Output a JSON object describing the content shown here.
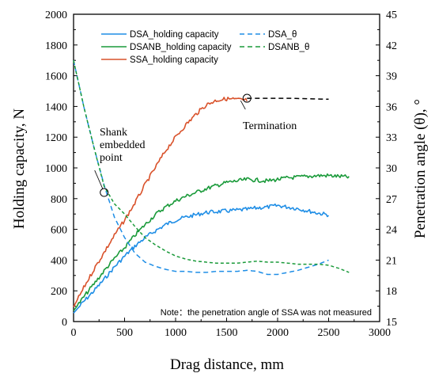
{
  "chart_data": {
    "type": "line",
    "xlabel": "Drag distance, mm",
    "ylabel_left": "Holding capacity, N",
    "ylabel_right": "Penetration angle (θ), °",
    "xlim": [
      0,
      3000
    ],
    "ylim_left": [
      0,
      2000
    ],
    "ylim_right": [
      15,
      45
    ],
    "x_ticks": [
      "0",
      "500",
      "1000",
      "1500",
      "2000",
      "2500",
      "3000"
    ],
    "y_left_ticks": [
      "0",
      "200",
      "400",
      "600",
      "800",
      "1000",
      "1200",
      "1400",
      "1600",
      "1800",
      "2000"
    ],
    "y_right_ticks": [
      "15",
      "18",
      "21",
      "24",
      "27",
      "30",
      "33",
      "36",
      "39",
      "42",
      "45"
    ],
    "grid": false,
    "legend_position": "top",
    "series": [
      {
        "name": "DSA_holding capacity",
        "axis": "left",
        "style": "solid",
        "color": "#1f8ee6",
        "x": [
          0,
          100,
          200,
          300,
          400,
          500,
          600,
          700,
          800,
          900,
          1000,
          1100,
          1200,
          1300,
          1400,
          1500,
          1600,
          1700,
          1800,
          1900,
          2000,
          2100,
          2200,
          2300,
          2400,
          2500
        ],
        "y": [
          55,
          130,
          200,
          275,
          355,
          425,
          490,
          545,
          590,
          630,
          660,
          680,
          695,
          710,
          715,
          720,
          725,
          730,
          740,
          745,
          755,
          745,
          735,
          720,
          705,
          695
        ]
      },
      {
        "name": "DSANB_holding capacity",
        "axis": "left",
        "style": "solid",
        "color": "#1a9a3a",
        "x": [
          0,
          100,
          200,
          300,
          400,
          500,
          600,
          700,
          800,
          900,
          1000,
          1100,
          1200,
          1300,
          1400,
          1500,
          1600,
          1700,
          1800,
          1900,
          2000,
          2100,
          2200,
          2300,
          2400,
          2500,
          2600,
          2700
        ],
        "y": [
          70,
          160,
          245,
          330,
          410,
          480,
          560,
          630,
          695,
          745,
          785,
          815,
          840,
          865,
          885,
          905,
          915,
          925,
          920,
          915,
          925,
          935,
          940,
          945,
          950,
          950,
          945,
          940
        ]
      },
      {
        "name": "SSA_holding capacity",
        "axis": "left",
        "style": "solid",
        "color": "#d9522b",
        "x": [
          0,
          100,
          200,
          300,
          400,
          500,
          600,
          700,
          800,
          900,
          1000,
          1100,
          1200,
          1300,
          1400,
          1500,
          1600,
          1700
        ],
        "y": [
          95,
          220,
          340,
          450,
          560,
          660,
          770,
          890,
          1000,
          1110,
          1200,
          1280,
          1350,
          1410,
          1440,
          1450,
          1445,
          1440
        ]
      },
      {
        "name": "DSA_θ",
        "axis": "right",
        "style": "dashed",
        "color": "#1f8ee6",
        "x": [
          0,
          100,
          200,
          300,
          400,
          500,
          600,
          700,
          800,
          900,
          1000,
          1100,
          1200,
          1300,
          1400,
          1500,
          1600,
          1700,
          1800,
          1900,
          2000,
          2100,
          2200,
          2300,
          2400,
          2500
        ],
        "y": [
          40.5,
          36,
          32,
          28.3,
          25.2,
          23.2,
          21.7,
          20.8,
          20.4,
          20.1,
          19.9,
          19.9,
          19.8,
          19.8,
          19.9,
          19.9,
          19.9,
          20.0,
          19.9,
          19.6,
          19.6,
          19.8,
          20.0,
          20.3,
          20.6,
          21.0
        ]
      },
      {
        "name": "DSANB_θ",
        "axis": "right",
        "style": "dashed",
        "color": "#1a9a3a",
        "x": [
          0,
          100,
          200,
          300,
          400,
          500,
          600,
          700,
          800,
          900,
          1000,
          1100,
          1200,
          1300,
          1400,
          1500,
          1600,
          1700,
          1800,
          1900,
          2000,
          2100,
          2200,
          2300,
          2400,
          2500,
          2600,
          2700
        ],
        "y": [
          40.5,
          36,
          32,
          28.2,
          26.5,
          25.5,
          24.3,
          23.2,
          22.5,
          21.9,
          21.4,
          21.1,
          20.9,
          20.8,
          20.7,
          20.7,
          20.7,
          20.8,
          20.9,
          20.8,
          20.8,
          20.7,
          20.6,
          20.6,
          20.6,
          20.5,
          20.2,
          19.8
        ]
      },
      {
        "name": "",
        "axis": "right",
        "style": "dashed",
        "color": "#000000",
        "x": [
          1700,
          1900,
          2100,
          2300,
          2500
        ],
        "y": [
          36.8,
          36.8,
          36.8,
          36.75,
          36.7
        ]
      }
    ],
    "annotations": [
      {
        "lines": [
          "Shank",
          "embedded",
          "point"
        ],
        "x": 300,
        "y": 27.6,
        "axis": "right"
      },
      {
        "lines": [
          "Termination"
        ],
        "x": 1700,
        "y": 36.8,
        "axis": "right"
      }
    ],
    "note": "Note：the penetration angle of SSA was not measured"
  }
}
